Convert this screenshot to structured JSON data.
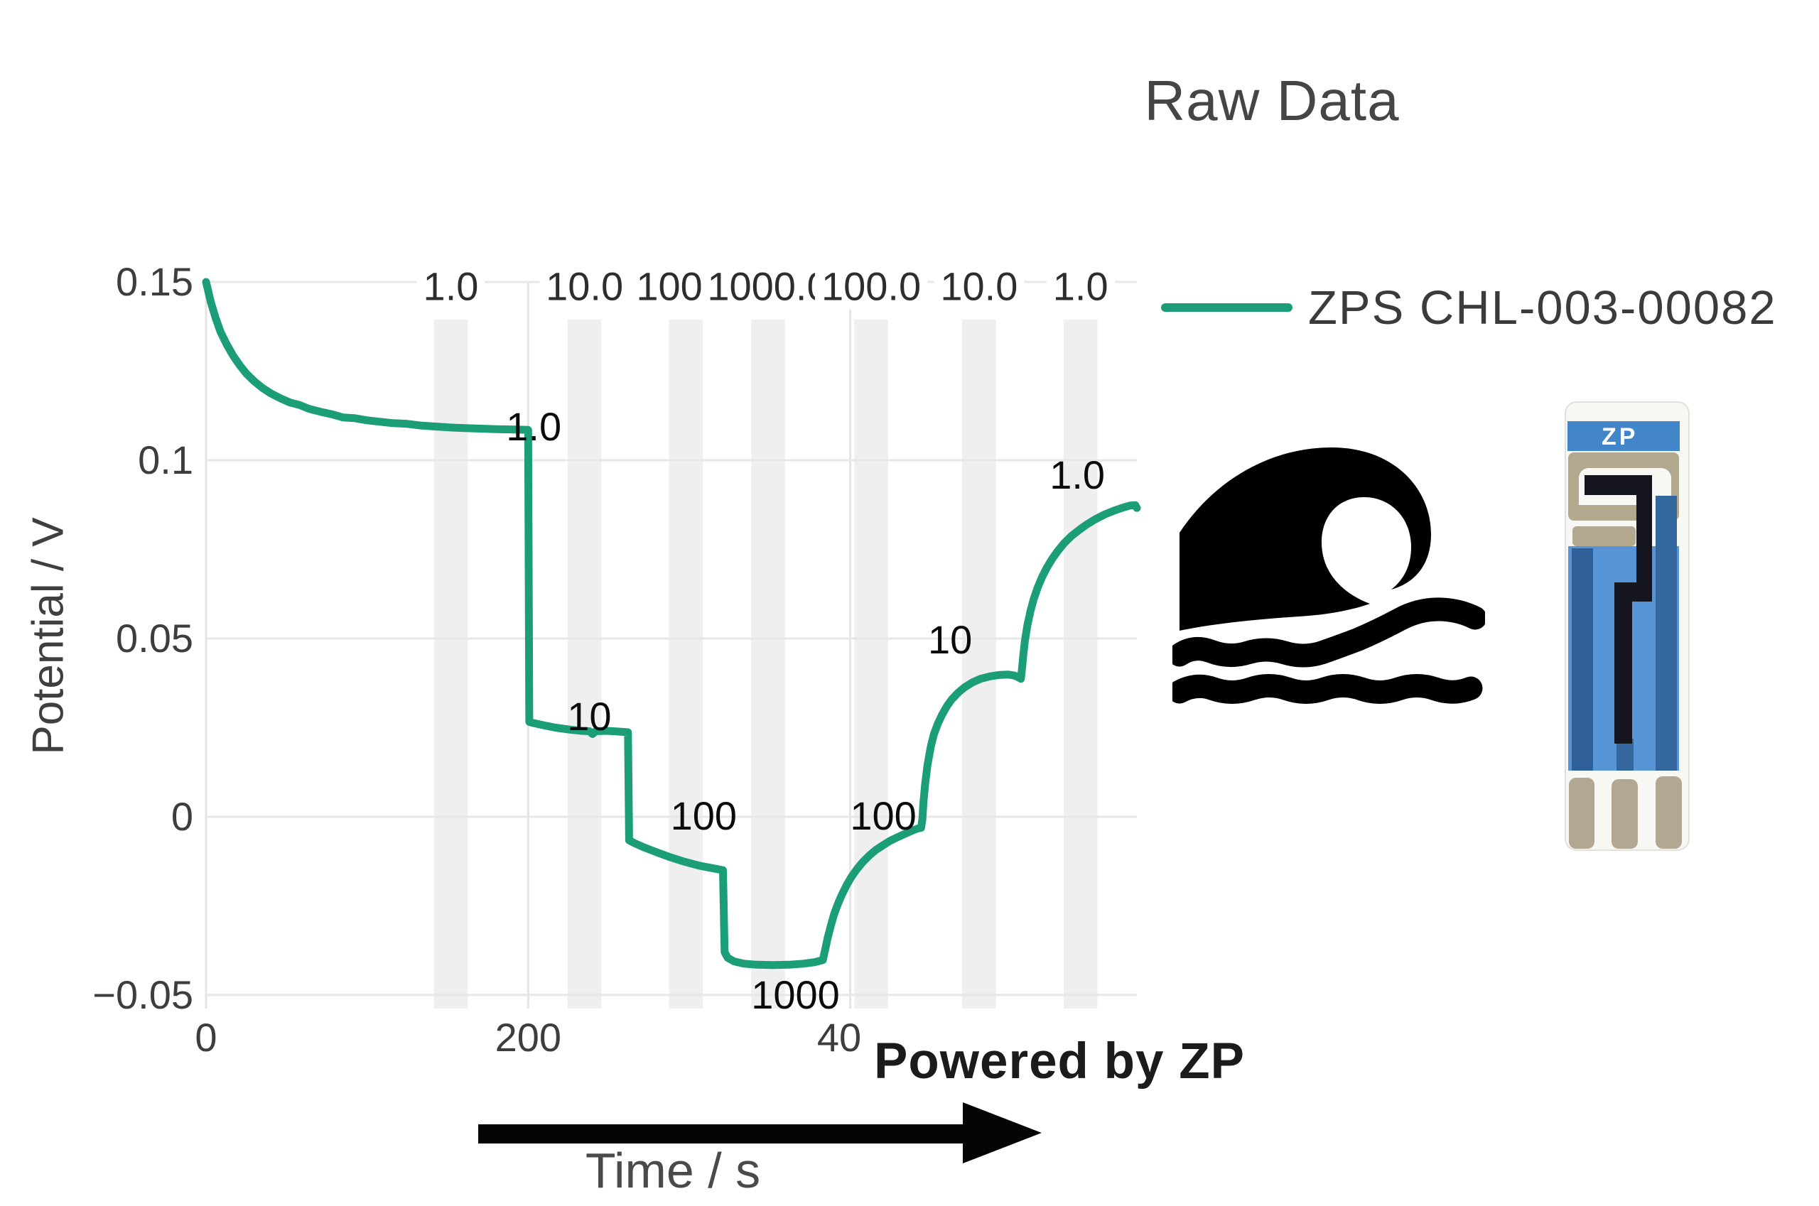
{
  "title": "Raw Data",
  "legend": {
    "series_label": "ZPS CHL-003-00082"
  },
  "watermark": {
    "powered_by": "Powered by ZP"
  },
  "x_axis": {
    "label": "Time / s",
    "ticks": [
      0,
      200,
      400
    ],
    "tick_labels": [
      "0",
      "200",
      "400"
    ]
  },
  "y_axis": {
    "label": "Potential / V",
    "ticks": [
      0.15,
      0.1,
      0.05,
      0,
      -0.05
    ],
    "tick_labels": [
      "0.15",
      "0.1",
      "0.05",
      "0",
      "−0.05"
    ]
  },
  "top_axis": {
    "labels": [
      {
        "x": 152,
        "text": "1.0"
      },
      {
        "x": 235,
        "text": "10.0"
      },
      {
        "x": 298,
        "text": "100.0"
      },
      {
        "x": 349,
        "text": "1000.0"
      },
      {
        "x": 413,
        "text": "100.0"
      },
      {
        "x": 480,
        "text": "10.0"
      },
      {
        "x": 543,
        "text": "1.0"
      }
    ]
  },
  "bands": {
    "centers_s": [
      152,
      235,
      298,
      349,
      413,
      480,
      543
    ],
    "width_s": 21,
    "color": "#efefef"
  },
  "annotations": [
    {
      "t": 203.5,
      "v": 0.1096,
      "text": "1.0"
    },
    {
      "t": 238,
      "v": 0.0283,
      "text": "10"
    },
    {
      "t": 309,
      "v": 0.0004,
      "text": "100"
    },
    {
      "t": 366,
      "v": -0.0498,
      "text": "1000"
    },
    {
      "t": 420.5,
      "v": 0.0004,
      "text": "100"
    },
    {
      "t": 462,
      "v": 0.0498,
      "text": "10"
    },
    {
      "t": 541,
      "v": 0.096,
      "text": "1.0"
    }
  ],
  "icons": {
    "wave": "ocean-wave",
    "sensor_strip_logo": "ZP"
  },
  "colors": {
    "series": "#1b9e77",
    "grid": "#e7e7e7",
    "band": "#efefef",
    "strip_blue": "#4286c9",
    "strip_body_blue": "#5895d6",
    "strip_dark_blue": "#35679f",
    "strip_tan": "#b3a98f"
  },
  "chart_data": {
    "type": "line",
    "title": "Raw Data",
    "xlabel": "Time / s",
    "ylabel": "Potential / V",
    "xlim": [
      0,
      578
    ],
    "ylim": [
      -0.0538,
      0.15
    ],
    "grid": true,
    "legend_position": "right-top",
    "series": [
      {
        "name": "ZPS CHL-003-00082",
        "color": "#1b9e77",
        "points": [
          [
            0,
            0.15
          ],
          [
            3,
            0.1443
          ],
          [
            6,
            0.1398
          ],
          [
            9,
            0.136
          ],
          [
            13,
            0.1323
          ],
          [
            17,
            0.1292
          ],
          [
            21,
            0.1266
          ],
          [
            25,
            0.1243
          ],
          [
            30,
            0.1221
          ],
          [
            35,
            0.1203
          ],
          [
            40,
            0.1188
          ],
          [
            46,
            0.1174
          ],
          [
            52,
            0.1162
          ],
          [
            58,
            0.1155
          ],
          [
            64,
            0.1144
          ],
          [
            71,
            0.1136
          ],
          [
            78,
            0.1129
          ],
          [
            85,
            0.112
          ],
          [
            92,
            0.1118
          ],
          [
            100,
            0.1112
          ],
          [
            108,
            0.1108
          ],
          [
            116,
            0.1104
          ],
          [
            125,
            0.1102
          ],
          [
            134,
            0.1097
          ],
          [
            144,
            0.1094
          ],
          [
            155,
            0.1091
          ],
          [
            167,
            0.1089
          ],
          [
            180,
            0.1087
          ],
          [
            192,
            0.1086
          ],
          [
            200,
            0.1085
          ],
          [
            200.7,
            0.0266
          ],
          [
            204,
            0.0262
          ],
          [
            210,
            0.0256
          ],
          [
            217,
            0.025
          ],
          [
            225,
            0.0245
          ],
          [
            233,
            0.0241
          ],
          [
            238,
            0.024
          ],
          [
            240,
            0.0232
          ],
          [
            242,
            0.024
          ],
          [
            249,
            0.0241
          ],
          [
            256,
            0.0239
          ],
          [
            262,
            0.0237
          ],
          [
            262.7,
            -0.0066
          ],
          [
            266,
            -0.0074
          ],
          [
            272,
            -0.0086
          ],
          [
            280,
            -0.01
          ],
          [
            288,
            -0.0113
          ],
          [
            297,
            -0.0126
          ],
          [
            306,
            -0.0137
          ],
          [
            314,
            -0.0144
          ],
          [
            321,
            -0.015
          ],
          [
            322,
            -0.038
          ],
          [
            324,
            -0.0396
          ],
          [
            328,
            -0.0406
          ],
          [
            334,
            -0.0412
          ],
          [
            342,
            -0.0415
          ],
          [
            352,
            -0.0416
          ],
          [
            362,
            -0.0415
          ],
          [
            371,
            -0.0412
          ],
          [
            378,
            -0.0408
          ],
          [
            383,
            -0.0402
          ],
          [
            384.5,
            -0.0372
          ],
          [
            386,
            -0.034
          ],
          [
            388,
            -0.0305
          ],
          [
            390,
            -0.0273
          ],
          [
            392.5,
            -0.0243
          ],
          [
            395,
            -0.0217
          ],
          [
            398,
            -0.019
          ],
          [
            401,
            -0.0167
          ],
          [
            404.5,
            -0.0145
          ],
          [
            408,
            -0.0126
          ],
          [
            412,
            -0.0108
          ],
          [
            416,
            -0.0093
          ],
          [
            420,
            -0.0081
          ],
          [
            425,
            -0.0067
          ],
          [
            430,
            -0.0056
          ],
          [
            435,
            -0.0046
          ],
          [
            439,
            -0.0038
          ],
          [
            442,
            -0.0033
          ],
          [
            444,
            -0.0031
          ],
          [
            444.8,
            -0.0008
          ],
          [
            445.5,
            0.0042
          ],
          [
            446.5,
            0.0092
          ],
          [
            448,
            0.0146
          ],
          [
            450,
            0.0196
          ],
          [
            452,
            0.0232
          ],
          [
            454.5,
            0.0262
          ],
          [
            457,
            0.0286
          ],
          [
            460,
            0.031
          ],
          [
            463,
            0.0329
          ],
          [
            467,
            0.0348
          ],
          [
            471,
            0.0363
          ],
          [
            476,
            0.0377
          ],
          [
            481,
            0.0387
          ],
          [
            487,
            0.0394
          ],
          [
            493,
            0.0398
          ],
          [
            498,
            0.0399
          ],
          [
            502,
            0.0396
          ],
          [
            504.5,
            0.0391
          ],
          [
            506,
            0.0387
          ],
          [
            506.8,
            0.042
          ],
          [
            507.5,
            0.0455
          ],
          [
            508.5,
            0.0495
          ],
          [
            510,
            0.0537
          ],
          [
            512,
            0.0578
          ],
          [
            514,
            0.0611
          ],
          [
            516.5,
            0.0644
          ],
          [
            519,
            0.0671
          ],
          [
            522,
            0.0698
          ],
          [
            525.5,
            0.0724
          ],
          [
            529,
            0.0746
          ],
          [
            533,
            0.0768
          ],
          [
            537.5,
            0.0788
          ],
          [
            542,
            0.0804
          ],
          [
            547,
            0.082
          ],
          [
            552,
            0.0834
          ],
          [
            558,
            0.0848
          ],
          [
            564,
            0.0859
          ],
          [
            570,
            0.0868
          ],
          [
            574,
            0.0873
          ],
          [
            577,
            0.0874
          ],
          [
            578,
            0.0866
          ]
        ]
      }
    ]
  }
}
